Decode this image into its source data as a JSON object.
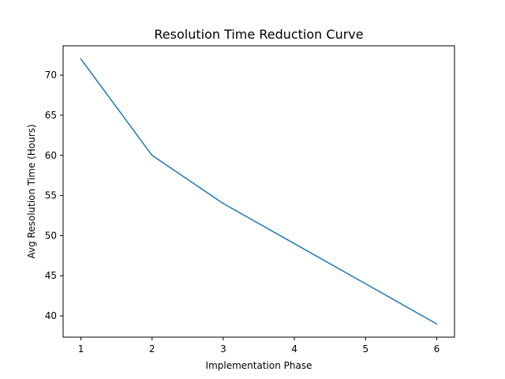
{
  "chart_data": {
    "type": "line",
    "title": "Resolution Time Reduction Curve",
    "xlabel": "Implementation Phase",
    "ylabel": "Avg Resolution Time (Hours)",
    "x": [
      1,
      2,
      3,
      4,
      5,
      6
    ],
    "series": [
      {
        "values": [
          72,
          60,
          54,
          49,
          44,
          39
        ],
        "color": "#1f77b4"
      }
    ],
    "xlim": [
      0.75,
      6.25
    ],
    "ylim": [
      37.35,
      73.65
    ],
    "xticks": [
      "1",
      "2",
      "3",
      "4",
      "5",
      "6"
    ],
    "yticks": [
      "40",
      "45",
      "50",
      "55",
      "60",
      "65",
      "70"
    ],
    "grid": false,
    "legend": "none"
  }
}
